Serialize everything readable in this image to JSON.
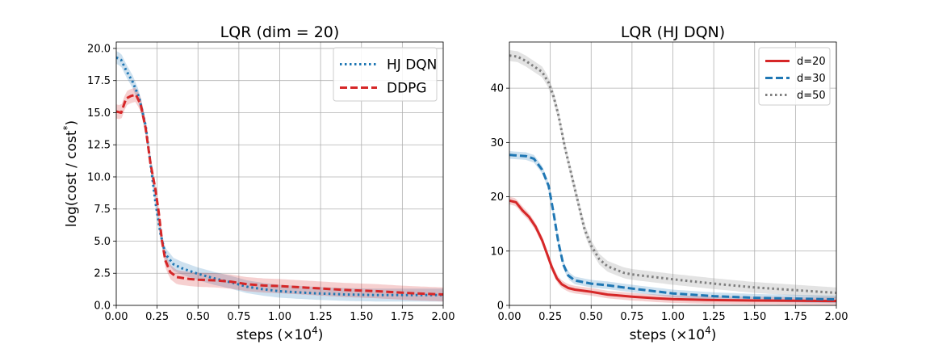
{
  "chart_data": [
    {
      "type": "line",
      "title": "LQR (dim = 20)",
      "xlabel": "steps (×10",
      "xlabel_sup": "4",
      "xlabel_end": ")",
      "ylabel": "log(cost / cost",
      "ylabel_sup": "*",
      "ylabel_end": ")",
      "xlim": [
        0,
        2.0
      ],
      "ylim": [
        0,
        20.5
      ],
      "xticks": [
        0.0,
        0.25,
        0.5,
        0.75,
        1.0,
        1.25,
        1.5,
        1.75,
        2.0
      ],
      "xtick_labels": [
        "0.00",
        "0.25",
        "0.50",
        "0.75",
        "1.00",
        "1.25",
        "1.50",
        "1.75",
        "2.00"
      ],
      "yticks": [
        0.0,
        2.5,
        5.0,
        7.5,
        10.0,
        12.5,
        15.0,
        17.5,
        20.0
      ],
      "ytick_labels": [
        "0.0",
        "2.5",
        "5.0",
        "7.5",
        "10.0",
        "12.5",
        "15.0",
        "17.5",
        "20.0"
      ],
      "grid": true,
      "legend": "top-right",
      "legend_size": "large",
      "series": [
        {
          "name": "HJ DQN",
          "color": "#1f77b4",
          "dash": "dotted",
          "band": 0.5,
          "x": [
            0,
            0.03,
            0.06,
            0.1,
            0.14,
            0.18,
            0.21,
            0.24,
            0.27,
            0.3,
            0.35,
            0.4,
            0.5,
            0.6,
            0.7,
            0.8,
            0.9,
            1.0,
            1.2,
            1.4,
            1.6,
            1.8,
            2.0
          ],
          "y": [
            19.3,
            19.1,
            18.3,
            17.4,
            16.2,
            14.0,
            11.0,
            8.0,
            5.6,
            4.0,
            3.2,
            2.9,
            2.45,
            2.1,
            1.8,
            1.45,
            1.25,
            1.1,
            0.95,
            0.85,
            0.8,
            0.8,
            0.8
          ]
        },
        {
          "name": "DDPG",
          "color": "#d62728",
          "dash": "dashed",
          "band": 0.55,
          "x": [
            0,
            0.03,
            0.06,
            0.09,
            0.12,
            0.15,
            0.18,
            0.21,
            0.24,
            0.26,
            0.28,
            0.3,
            0.33,
            0.37,
            0.45,
            0.5,
            0.6,
            0.7,
            0.8,
            0.9,
            1.0,
            1.2,
            1.4,
            1.6,
            1.8,
            2.0
          ],
          "y": [
            15.1,
            15.0,
            16.1,
            16.3,
            16.4,
            15.6,
            13.8,
            11.0,
            9.0,
            7.2,
            5.0,
            3.5,
            2.6,
            2.2,
            2.05,
            2.0,
            1.95,
            1.85,
            1.65,
            1.55,
            1.5,
            1.35,
            1.2,
            1.1,
            0.95,
            0.85
          ]
        }
      ]
    },
    {
      "type": "line",
      "title": "LQR (HJ DQN)",
      "xlabel": "steps (×10",
      "xlabel_sup": "4",
      "xlabel_end": ")",
      "ylabel": "",
      "xlim": [
        0,
        2.0
      ],
      "ylim": [
        0,
        48.5
      ],
      "xticks": [
        0.0,
        0.25,
        0.5,
        0.75,
        1.0,
        1.25,
        1.5,
        1.75,
        2.0
      ],
      "xtick_labels": [
        "0.00",
        "0.25",
        "0.50",
        "0.75",
        "1.00",
        "1.25",
        "1.50",
        "1.75",
        "2.00"
      ],
      "yticks": [
        0,
        10,
        20,
        30,
        40
      ],
      "ytick_labels": [
        "0",
        "10",
        "20",
        "30",
        "40"
      ],
      "grid": true,
      "legend": "top-right",
      "legend_size": "small",
      "series": [
        {
          "name": "d=20",
          "color": "#d62728",
          "dash": "solid",
          "band": 0.7,
          "x": [
            0,
            0.04,
            0.08,
            0.12,
            0.16,
            0.2,
            0.23,
            0.26,
            0.29,
            0.32,
            0.36,
            0.4,
            0.5,
            0.6,
            0.75,
            0.9,
            1.0,
            1.2,
            1.5,
            1.75,
            2.0
          ],
          "y": [
            19.3,
            19.0,
            17.5,
            16.3,
            14.5,
            12.0,
            9.5,
            7.0,
            5.0,
            3.9,
            3.2,
            2.9,
            2.5,
            2.0,
            1.6,
            1.3,
            1.15,
            1.0,
            0.9,
            0.85,
            0.8
          ]
        },
        {
          "name": "d=30",
          "color": "#1f77b4",
          "dash": "dashed",
          "band": 0.7,
          "x": [
            0,
            0.05,
            0.1,
            0.15,
            0.2,
            0.24,
            0.27,
            0.3,
            0.33,
            0.36,
            0.4,
            0.45,
            0.5,
            0.6,
            0.75,
            1.0,
            1.25,
            1.5,
            1.75,
            2.0
          ],
          "y": [
            27.7,
            27.6,
            27.5,
            27.0,
            25.0,
            22.0,
            17.0,
            11.5,
            7.5,
            5.5,
            4.6,
            4.3,
            4.0,
            3.7,
            3.1,
            2.2,
            1.7,
            1.4,
            1.25,
            1.1
          ]
        },
        {
          "name": "d=50",
          "color": "#7f7f7f",
          "dash": "dotted",
          "band": 1.0,
          "x": [
            0,
            0.05,
            0.1,
            0.15,
            0.2,
            0.24,
            0.27,
            0.3,
            0.34,
            0.38,
            0.42,
            0.46,
            0.5,
            0.55,
            0.6,
            0.7,
            0.75,
            1.0,
            1.25,
            1.5,
            1.75,
            2.0
          ],
          "y": [
            46.0,
            45.8,
            45.0,
            44.0,
            43.0,
            41.0,
            38.5,
            35.0,
            29.0,
            24.0,
            19.0,
            14.0,
            11.0,
            8.5,
            7.2,
            6.0,
            5.7,
            4.8,
            4.0,
            3.3,
            2.8,
            2.3
          ]
        }
      ]
    }
  ]
}
